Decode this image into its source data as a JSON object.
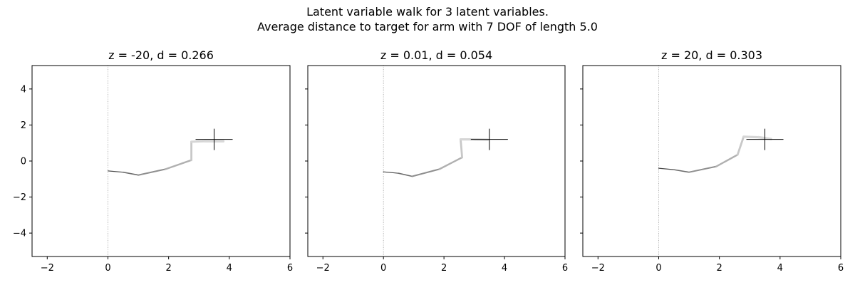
{
  "figure": {
    "title_lines": [
      "Latent variable walk for 3 latent variables.",
      "Average distance to target for arm with 7 DOF of length 5.0"
    ]
  },
  "chart_data": [
    {
      "type": "line",
      "title": "z = -20, d = 0.266",
      "xlim": [
        -2.5,
        6
      ],
      "ylim": [
        -5.3,
        5.3
      ],
      "xticks": [
        -2,
        0,
        2,
        4,
        6
      ],
      "yticks": [
        -4,
        -2,
        0,
        2,
        4
      ],
      "show_yticklabels": true,
      "target": [
        3.5,
        1.2
      ],
      "reference_line_x": 0,
      "arm": {
        "x": [
          0,
          0.5,
          1.0,
          1.9,
          2.75,
          2.75,
          3.2,
          3.8
        ],
        "y": [
          -0.55,
          -0.62,
          -0.78,
          -0.45,
          0.05,
          1.07,
          1.1,
          1.1
        ]
      }
    },
    {
      "type": "line",
      "title": "z = 0.01, d = 0.054",
      "xlim": [
        -2.5,
        6
      ],
      "ylim": [
        -5.3,
        5.3
      ],
      "xticks": [
        -2,
        0,
        2,
        4,
        6
      ],
      "yticks": [
        -4,
        -2,
        0,
        2,
        4
      ],
      "show_yticklabels": false,
      "target": [
        3.5,
        1.2
      ],
      "reference_line_x": 0,
      "arm": {
        "x": [
          0,
          0.5,
          0.95,
          1.85,
          2.6,
          2.55,
          3.0,
          3.45
        ],
        "y": [
          -0.6,
          -0.68,
          -0.85,
          -0.45,
          0.2,
          1.2,
          1.2,
          1.18
        ]
      }
    },
    {
      "type": "line",
      "title": "z = 20, d = 0.303",
      "xlim": [
        -2.5,
        6
      ],
      "ylim": [
        -5.3,
        5.3
      ],
      "xticks": [
        -2,
        0,
        2,
        4,
        6
      ],
      "yticks": [
        -4,
        -2,
        0,
        2,
        4
      ],
      "show_yticklabels": false,
      "target": [
        3.5,
        1.2
      ],
      "reference_line_x": 0,
      "arm": {
        "x": [
          0,
          0.5,
          1.0,
          1.9,
          2.6,
          2.8,
          3.3,
          3.7
        ],
        "y": [
          -0.4,
          -0.48,
          -0.62,
          -0.3,
          0.35,
          1.35,
          1.32,
          1.22
        ]
      }
    }
  ]
}
